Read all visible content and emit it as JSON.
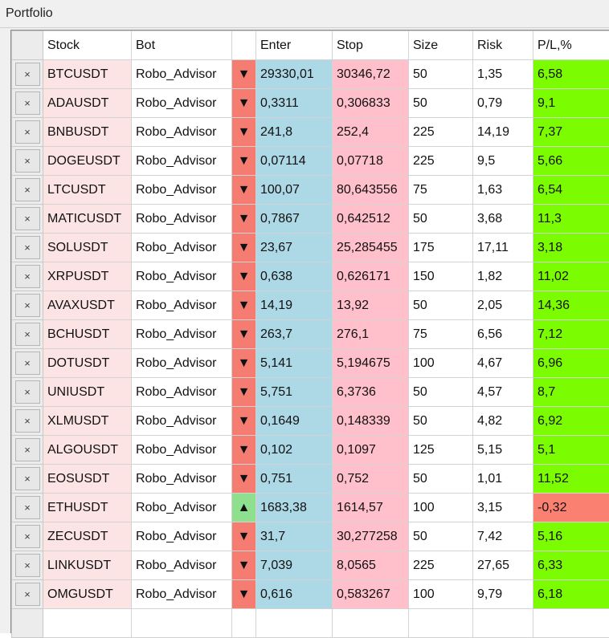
{
  "window": {
    "title": "Portfolio"
  },
  "columns": [
    "Stock",
    "Bot",
    "",
    "Enter",
    "Stop",
    "Size",
    "Risk",
    "P/L,%"
  ],
  "close_glyph": "×",
  "colors": {
    "stock_bg": "#fde4e4",
    "direction_down_bg": "#f47c70",
    "direction_up_bg": "#8ee08e",
    "enter_bg": "#add8e6",
    "stop_bg": "#ffc0cb",
    "pl_positive_bg": "#7cfc00",
    "pl_negative_bg": "#fa8072"
  },
  "rows": [
    {
      "stock": "BTCUSDT",
      "bot": "Robo_Advisor",
      "dir": "down",
      "arrow": "▼",
      "enter": "29330,01",
      "stop": "30346,72",
      "size": "50",
      "risk": "1,35",
      "pl": "6,58"
    },
    {
      "stock": "ADAUSDT",
      "bot": "Robo_Advisor",
      "dir": "down",
      "arrow": "▼",
      "enter": "0,3311",
      "stop": "0,306833",
      "size": "50",
      "risk": "0,79",
      "pl": "9,1"
    },
    {
      "stock": "BNBUSDT",
      "bot": "Robo_Advisor",
      "dir": "down",
      "arrow": "▼",
      "enter": "241,8",
      "stop": "252,4",
      "size": "225",
      "risk": "14,19",
      "pl": "7,37"
    },
    {
      "stock": "DOGEUSDT",
      "bot": "Robo_Advisor",
      "dir": "down",
      "arrow": "▼",
      "enter": "0,07114",
      "stop": "0,07718",
      "size": "225",
      "risk": "9,5",
      "pl": "5,66"
    },
    {
      "stock": "LTCUSDT",
      "bot": "Robo_Advisor",
      "dir": "down",
      "arrow": "▼",
      "enter": "100,07",
      "stop": "80,643556",
      "size": "75",
      "risk": "1,63",
      "pl": "6,54"
    },
    {
      "stock": "MATICUSDT",
      "bot": "Robo_Advisor",
      "dir": "down",
      "arrow": "▼",
      "enter": "0,7867",
      "stop": "0,642512",
      "size": "50",
      "risk": "3,68",
      "pl": "11,3"
    },
    {
      "stock": "SOLUSDT",
      "bot": "Robo_Advisor",
      "dir": "down",
      "arrow": "▼",
      "enter": "23,67",
      "stop": "25,285455",
      "size": "175",
      "risk": "17,11",
      "pl": "3,18"
    },
    {
      "stock": "XRPUSDT",
      "bot": "Robo_Advisor",
      "dir": "down",
      "arrow": "▼",
      "enter": "0,638",
      "stop": "0,626171",
      "size": "150",
      "risk": "1,82",
      "pl": "11,02"
    },
    {
      "stock": "AVAXUSDT",
      "bot": "Robo_Advisor",
      "dir": "down",
      "arrow": "▼",
      "enter": "14,19",
      "stop": "13,92",
      "size": "50",
      "risk": "2,05",
      "pl": "14,36"
    },
    {
      "stock": "BCHUSDT",
      "bot": "Robo_Advisor",
      "dir": "down",
      "arrow": "▼",
      "enter": "263,7",
      "stop": "276,1",
      "size": "75",
      "risk": "6,56",
      "pl": "7,12"
    },
    {
      "stock": "DOTUSDT",
      "bot": "Robo_Advisor",
      "dir": "down",
      "arrow": "▼",
      "enter": "5,141",
      "stop": "5,194675",
      "size": "100",
      "risk": "4,67",
      "pl": "6,96"
    },
    {
      "stock": "UNIUSDT",
      "bot": "Robo_Advisor",
      "dir": "down",
      "arrow": "▼",
      "enter": "5,751",
      "stop": "6,3736",
      "size": "50",
      "risk": "4,57",
      "pl": "8,7"
    },
    {
      "stock": "XLMUSDT",
      "bot": "Robo_Advisor",
      "dir": "down",
      "arrow": "▼",
      "enter": "0,1649",
      "stop": "0,148339",
      "size": "50",
      "risk": "4,82",
      "pl": "6,92"
    },
    {
      "stock": "ALGOUSDT",
      "bot": "Robo_Advisor",
      "dir": "down",
      "arrow": "▼",
      "enter": "0,102",
      "stop": "0,1097",
      "size": "125",
      "risk": "5,15",
      "pl": "5,1"
    },
    {
      "stock": "EOSUSDT",
      "bot": "Robo_Advisor",
      "dir": "down",
      "arrow": "▼",
      "enter": "0,751",
      "stop": "0,752",
      "size": "50",
      "risk": "1,01",
      "pl": "11,52"
    },
    {
      "stock": "ETHUSDT",
      "bot": "Robo_Advisor",
      "dir": "up",
      "arrow": "▲",
      "enter": "1683,38",
      "stop": "1614,57",
      "size": "100",
      "risk": "3,15",
      "pl": "-0,32"
    },
    {
      "stock": "ZECUSDT",
      "bot": "Robo_Advisor",
      "dir": "down",
      "arrow": "▼",
      "enter": "31,7",
      "stop": "30,277258",
      "size": "50",
      "risk": "7,42",
      "pl": "5,16"
    },
    {
      "stock": "LINKUSDT",
      "bot": "Robo_Advisor",
      "dir": "down",
      "arrow": "▼",
      "enter": "7,039",
      "stop": "8,0565",
      "size": "225",
      "risk": "27,65",
      "pl": "6,33"
    },
    {
      "stock": "OMGUSDT",
      "bot": "Robo_Advisor",
      "dir": "down",
      "arrow": "▼",
      "enter": "0,616",
      "stop": "0,583267",
      "size": "100",
      "risk": "9,79",
      "pl": "6,18"
    }
  ]
}
